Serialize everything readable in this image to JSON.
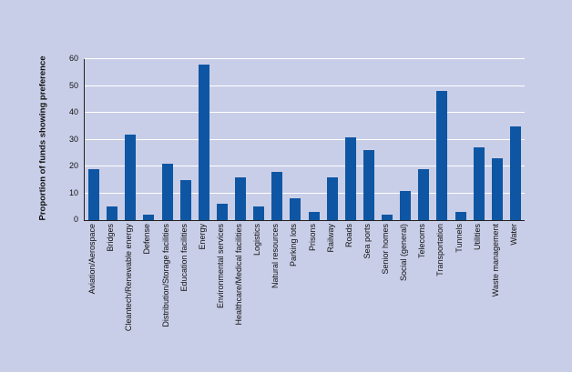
{
  "chart_data": {
    "type": "bar",
    "title": "",
    "xlabel": "",
    "ylabel": "Proportion of funds showing preference",
    "ylim": [
      0,
      60
    ],
    "ytick_step": 10,
    "grid": true,
    "legend": false,
    "bar_color": "#0e56a3",
    "background_color": "#c9cee8",
    "categories": [
      "Aviation/Aerospace",
      "Bridges",
      "Cleantech/Renewable energy",
      "Defense",
      "Distribution/Storage facilities",
      "Education facilities",
      "Energy",
      "Environmental services",
      "Healthcare/Medical facilities",
      "Logistics",
      "Natural resources",
      "Parking lots",
      "Prisons",
      "Railway",
      "Roads",
      "Sea ports",
      "Senior homes",
      "Social (general)",
      "Telecoms",
      "Transportation",
      "Tunnels",
      "Utilities",
      "Waste management",
      "Water"
    ],
    "values": [
      19,
      5,
      32,
      2,
      21,
      15,
      58,
      6,
      16,
      5,
      18,
      8,
      3,
      16,
      31,
      26,
      2,
      11,
      19,
      48,
      3,
      27,
      23,
      35
    ]
  }
}
